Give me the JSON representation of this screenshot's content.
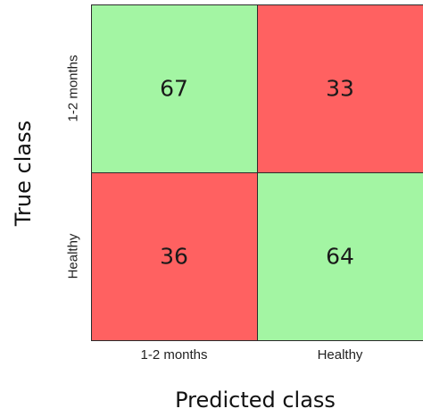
{
  "chart_data": {
    "type": "heatmap",
    "title": "",
    "xlabel": "Predicted class",
    "ylabel": "True class",
    "x_categories": [
      "1-2 months",
      "Healthy"
    ],
    "y_categories": [
      "1-2 months",
      "Healthy"
    ],
    "values": [
      [
        67,
        33
      ],
      [
        36,
        64
      ]
    ],
    "colors": {
      "correct": "#a3f5a3",
      "incorrect": "#ff6161",
      "border": "#2b2b2b"
    }
  }
}
